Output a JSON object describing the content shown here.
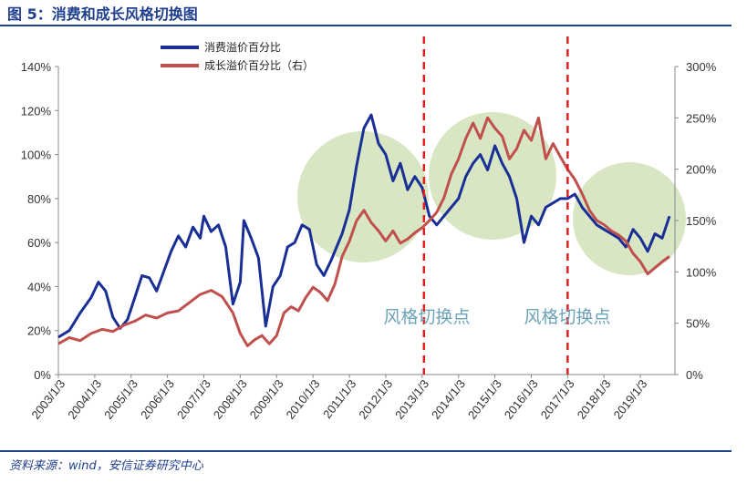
{
  "figure": {
    "title": "图 5：消费和成长风格切换图",
    "source": "资料来源：wind，安信证券研究中心"
  },
  "colors": {
    "consumer": "#1a2f96",
    "growth": "#c0504d",
    "regime_circle": "#d8e6c4",
    "switch_line": "#e02020",
    "header_rule": "#1f3f8f"
  },
  "chart_data": {
    "type": "line",
    "x_labels": [
      "2003/1/3",
      "2004/1/3",
      "2005/1/3",
      "2006/1/3",
      "2007/1/3",
      "2008/1/3",
      "2009/1/3",
      "2010/1/3",
      "2011/1/3",
      "2012/1/3",
      "2013/1/3",
      "2014/1/3",
      "2015/1/3",
      "2016/1/3",
      "2017/1/3",
      "2018/1/3",
      "2019/1/3"
    ],
    "y_left": {
      "min": 0,
      "max": 140,
      "ticks": [
        "0%",
        "20%",
        "40%",
        "60%",
        "80%",
        "100%",
        "120%",
        "140%"
      ]
    },
    "y_right": {
      "min": 0,
      "max": 300,
      "ticks": [
        "0%",
        "50%",
        "100%",
        "150%",
        "200%",
        "250%",
        "300%"
      ]
    },
    "series": [
      {
        "name": "消费溢价百分比",
        "axis": "left",
        "points": [
          [
            2003.0,
            17
          ],
          [
            2003.3,
            20
          ],
          [
            2003.6,
            28
          ],
          [
            2003.9,
            35
          ],
          [
            2004.1,
            42
          ],
          [
            2004.3,
            38
          ],
          [
            2004.5,
            26
          ],
          [
            2004.7,
            21
          ],
          [
            2004.9,
            25
          ],
          [
            2005.1,
            35
          ],
          [
            2005.3,
            45
          ],
          [
            2005.5,
            44
          ],
          [
            2005.7,
            38
          ],
          [
            2005.9,
            47
          ],
          [
            2006.1,
            56
          ],
          [
            2006.3,
            63
          ],
          [
            2006.5,
            58
          ],
          [
            2006.7,
            67
          ],
          [
            2006.9,
            62
          ],
          [
            2007.0,
            72
          ],
          [
            2007.2,
            65
          ],
          [
            2007.4,
            68
          ],
          [
            2007.6,
            58
          ],
          [
            2007.8,
            32
          ],
          [
            2008.0,
            42
          ],
          [
            2008.1,
            70
          ],
          [
            2008.3,
            62
          ],
          [
            2008.5,
            53
          ],
          [
            2008.7,
            22
          ],
          [
            2008.9,
            40
          ],
          [
            2009.1,
            45
          ],
          [
            2009.3,
            58
          ],
          [
            2009.5,
            60
          ],
          [
            2009.7,
            68
          ],
          [
            2009.9,
            66
          ],
          [
            2010.1,
            50
          ],
          [
            2010.3,
            45
          ],
          [
            2010.5,
            52
          ],
          [
            2010.8,
            64
          ],
          [
            2011.0,
            75
          ],
          [
            2011.2,
            95
          ],
          [
            2011.4,
            112
          ],
          [
            2011.6,
            118
          ],
          [
            2011.8,
            105
          ],
          [
            2012.0,
            100
          ],
          [
            2012.2,
            88
          ],
          [
            2012.4,
            96
          ],
          [
            2012.6,
            84
          ],
          [
            2012.8,
            90
          ],
          [
            2013.0,
            85
          ],
          [
            2013.2,
            72
          ],
          [
            2013.4,
            68
          ],
          [
            2013.6,
            72
          ],
          [
            2013.8,
            76
          ],
          [
            2014.0,
            80
          ],
          [
            2014.2,
            90
          ],
          [
            2014.4,
            96
          ],
          [
            2014.6,
            100
          ],
          [
            2014.8,
            93
          ],
          [
            2015.0,
            104
          ],
          [
            2015.2,
            96
          ],
          [
            2015.4,
            90
          ],
          [
            2015.6,
            80
          ],
          [
            2015.8,
            60
          ],
          [
            2016.0,
            72
          ],
          [
            2016.2,
            68
          ],
          [
            2016.4,
            76
          ],
          [
            2016.6,
            78
          ],
          [
            2016.8,
            80
          ],
          [
            2017.0,
            80
          ],
          [
            2017.2,
            82
          ],
          [
            2017.4,
            76
          ],
          [
            2017.6,
            72
          ],
          [
            2017.8,
            68
          ],
          [
            2018.0,
            66
          ],
          [
            2018.2,
            64
          ],
          [
            2018.4,
            62
          ],
          [
            2018.6,
            58
          ],
          [
            2018.8,
            66
          ],
          [
            2019.0,
            62
          ],
          [
            2019.2,
            56
          ],
          [
            2019.4,
            64
          ],
          [
            2019.6,
            62
          ],
          [
            2019.8,
            72
          ]
        ]
      },
      {
        "name": "成长溢价百分比（右）",
        "axis": "right",
        "points": [
          [
            2003.0,
            30
          ],
          [
            2003.3,
            36
          ],
          [
            2003.6,
            33
          ],
          [
            2003.9,
            40
          ],
          [
            2004.2,
            44
          ],
          [
            2004.5,
            42
          ],
          [
            2004.8,
            48
          ],
          [
            2005.1,
            52
          ],
          [
            2005.4,
            58
          ],
          [
            2005.7,
            55
          ],
          [
            2006.0,
            60
          ],
          [
            2006.3,
            62
          ],
          [
            2006.6,
            70
          ],
          [
            2006.9,
            78
          ],
          [
            2007.2,
            82
          ],
          [
            2007.5,
            76
          ],
          [
            2007.8,
            60
          ],
          [
            2008.0,
            40
          ],
          [
            2008.2,
            28
          ],
          [
            2008.4,
            34
          ],
          [
            2008.6,
            38
          ],
          [
            2008.8,
            30
          ],
          [
            2009.0,
            38
          ],
          [
            2009.2,
            60
          ],
          [
            2009.4,
            66
          ],
          [
            2009.6,
            62
          ],
          [
            2009.8,
            75
          ],
          [
            2010.0,
            85
          ],
          [
            2010.2,
            80
          ],
          [
            2010.4,
            72
          ],
          [
            2010.6,
            88
          ],
          [
            2010.8,
            115
          ],
          [
            2011.0,
            130
          ],
          [
            2011.2,
            150
          ],
          [
            2011.4,
            160
          ],
          [
            2011.6,
            148
          ],
          [
            2011.8,
            140
          ],
          [
            2012.0,
            130
          ],
          [
            2012.2,
            140
          ],
          [
            2012.4,
            128
          ],
          [
            2012.6,
            132
          ],
          [
            2012.8,
            138
          ],
          [
            2013.0,
            143
          ],
          [
            2013.2,
            150
          ],
          [
            2013.4,
            158
          ],
          [
            2013.6,
            172
          ],
          [
            2013.8,
            195
          ],
          [
            2014.0,
            210
          ],
          [
            2014.2,
            230
          ],
          [
            2014.4,
            245
          ],
          [
            2014.6,
            230
          ],
          [
            2014.8,
            250
          ],
          [
            2015.0,
            240
          ],
          [
            2015.2,
            232
          ],
          [
            2015.4,
            210
          ],
          [
            2015.6,
            220
          ],
          [
            2015.8,
            238
          ],
          [
            2016.0,
            228
          ],
          [
            2016.2,
            250
          ],
          [
            2016.4,
            210
          ],
          [
            2016.6,
            225
          ],
          [
            2016.8,
            212
          ],
          [
            2017.0,
            200
          ],
          [
            2017.2,
            190
          ],
          [
            2017.4,
            176
          ],
          [
            2017.6,
            160
          ],
          [
            2017.8,
            150
          ],
          [
            2018.0,
            146
          ],
          [
            2018.2,
            140
          ],
          [
            2018.4,
            136
          ],
          [
            2018.6,
            130
          ],
          [
            2018.8,
            118
          ],
          [
            2019.0,
            110
          ],
          [
            2019.2,
            98
          ],
          [
            2019.4,
            104
          ],
          [
            2019.6,
            110
          ],
          [
            2019.8,
            115
          ]
        ]
      }
    ],
    "regime_switch_x": [
      2013.05,
      2017.0
    ],
    "annotations": [
      "风格切换点",
      "风格切换点"
    ],
    "legend_position": "top-left"
  }
}
